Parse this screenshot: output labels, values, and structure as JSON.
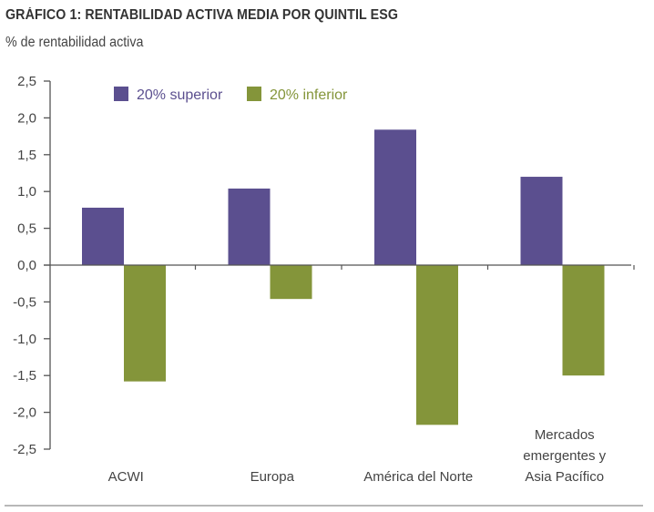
{
  "header": {
    "title": "GRÁFICO 1: RENTABILIDAD ACTIVA MEDIA POR QUINTIL ESG",
    "subtitle": "% de rentabilidad activa"
  },
  "colors": {
    "superior": "#5b4f8f",
    "inferior": "#84953a",
    "axis": "#555555"
  },
  "chart_data": {
    "type": "bar",
    "title": "GRÁFICO 1: RENTABILIDAD ACTIVA MEDIA POR QUINTIL ESG",
    "ylabel": "% de rentabilidad activa",
    "xlabel": "",
    "categories": [
      [
        "ACWI"
      ],
      [
        "Europa"
      ],
      [
        "América del Norte"
      ],
      [
        "Mercados",
        "emergentes y",
        "Asia Pacífico"
      ]
    ],
    "series": [
      {
        "name": "20% superior",
        "color": "#5b4f8f",
        "values": [
          0.78,
          1.04,
          1.84,
          1.2
        ]
      },
      {
        "name": "20% inferior",
        "color": "#84953a",
        "values": [
          -1.58,
          -0.46,
          -2.17,
          -1.5
        ]
      }
    ],
    "ylim": [
      -2.5,
      2.5
    ],
    "yticks": [
      2.5,
      2.0,
      1.5,
      1.0,
      0.5,
      0.0,
      -0.5,
      -1.0,
      -1.5,
      -2.0,
      -2.5
    ],
    "ytick_labels": [
      "2,5",
      "2,0",
      "1,5",
      "1,0",
      "0,5",
      "0,0",
      "-0,5",
      "-1,0",
      "-1,5",
      "-2,0",
      "-2,5"
    ],
    "grid": false,
    "legend": "top-left"
  }
}
